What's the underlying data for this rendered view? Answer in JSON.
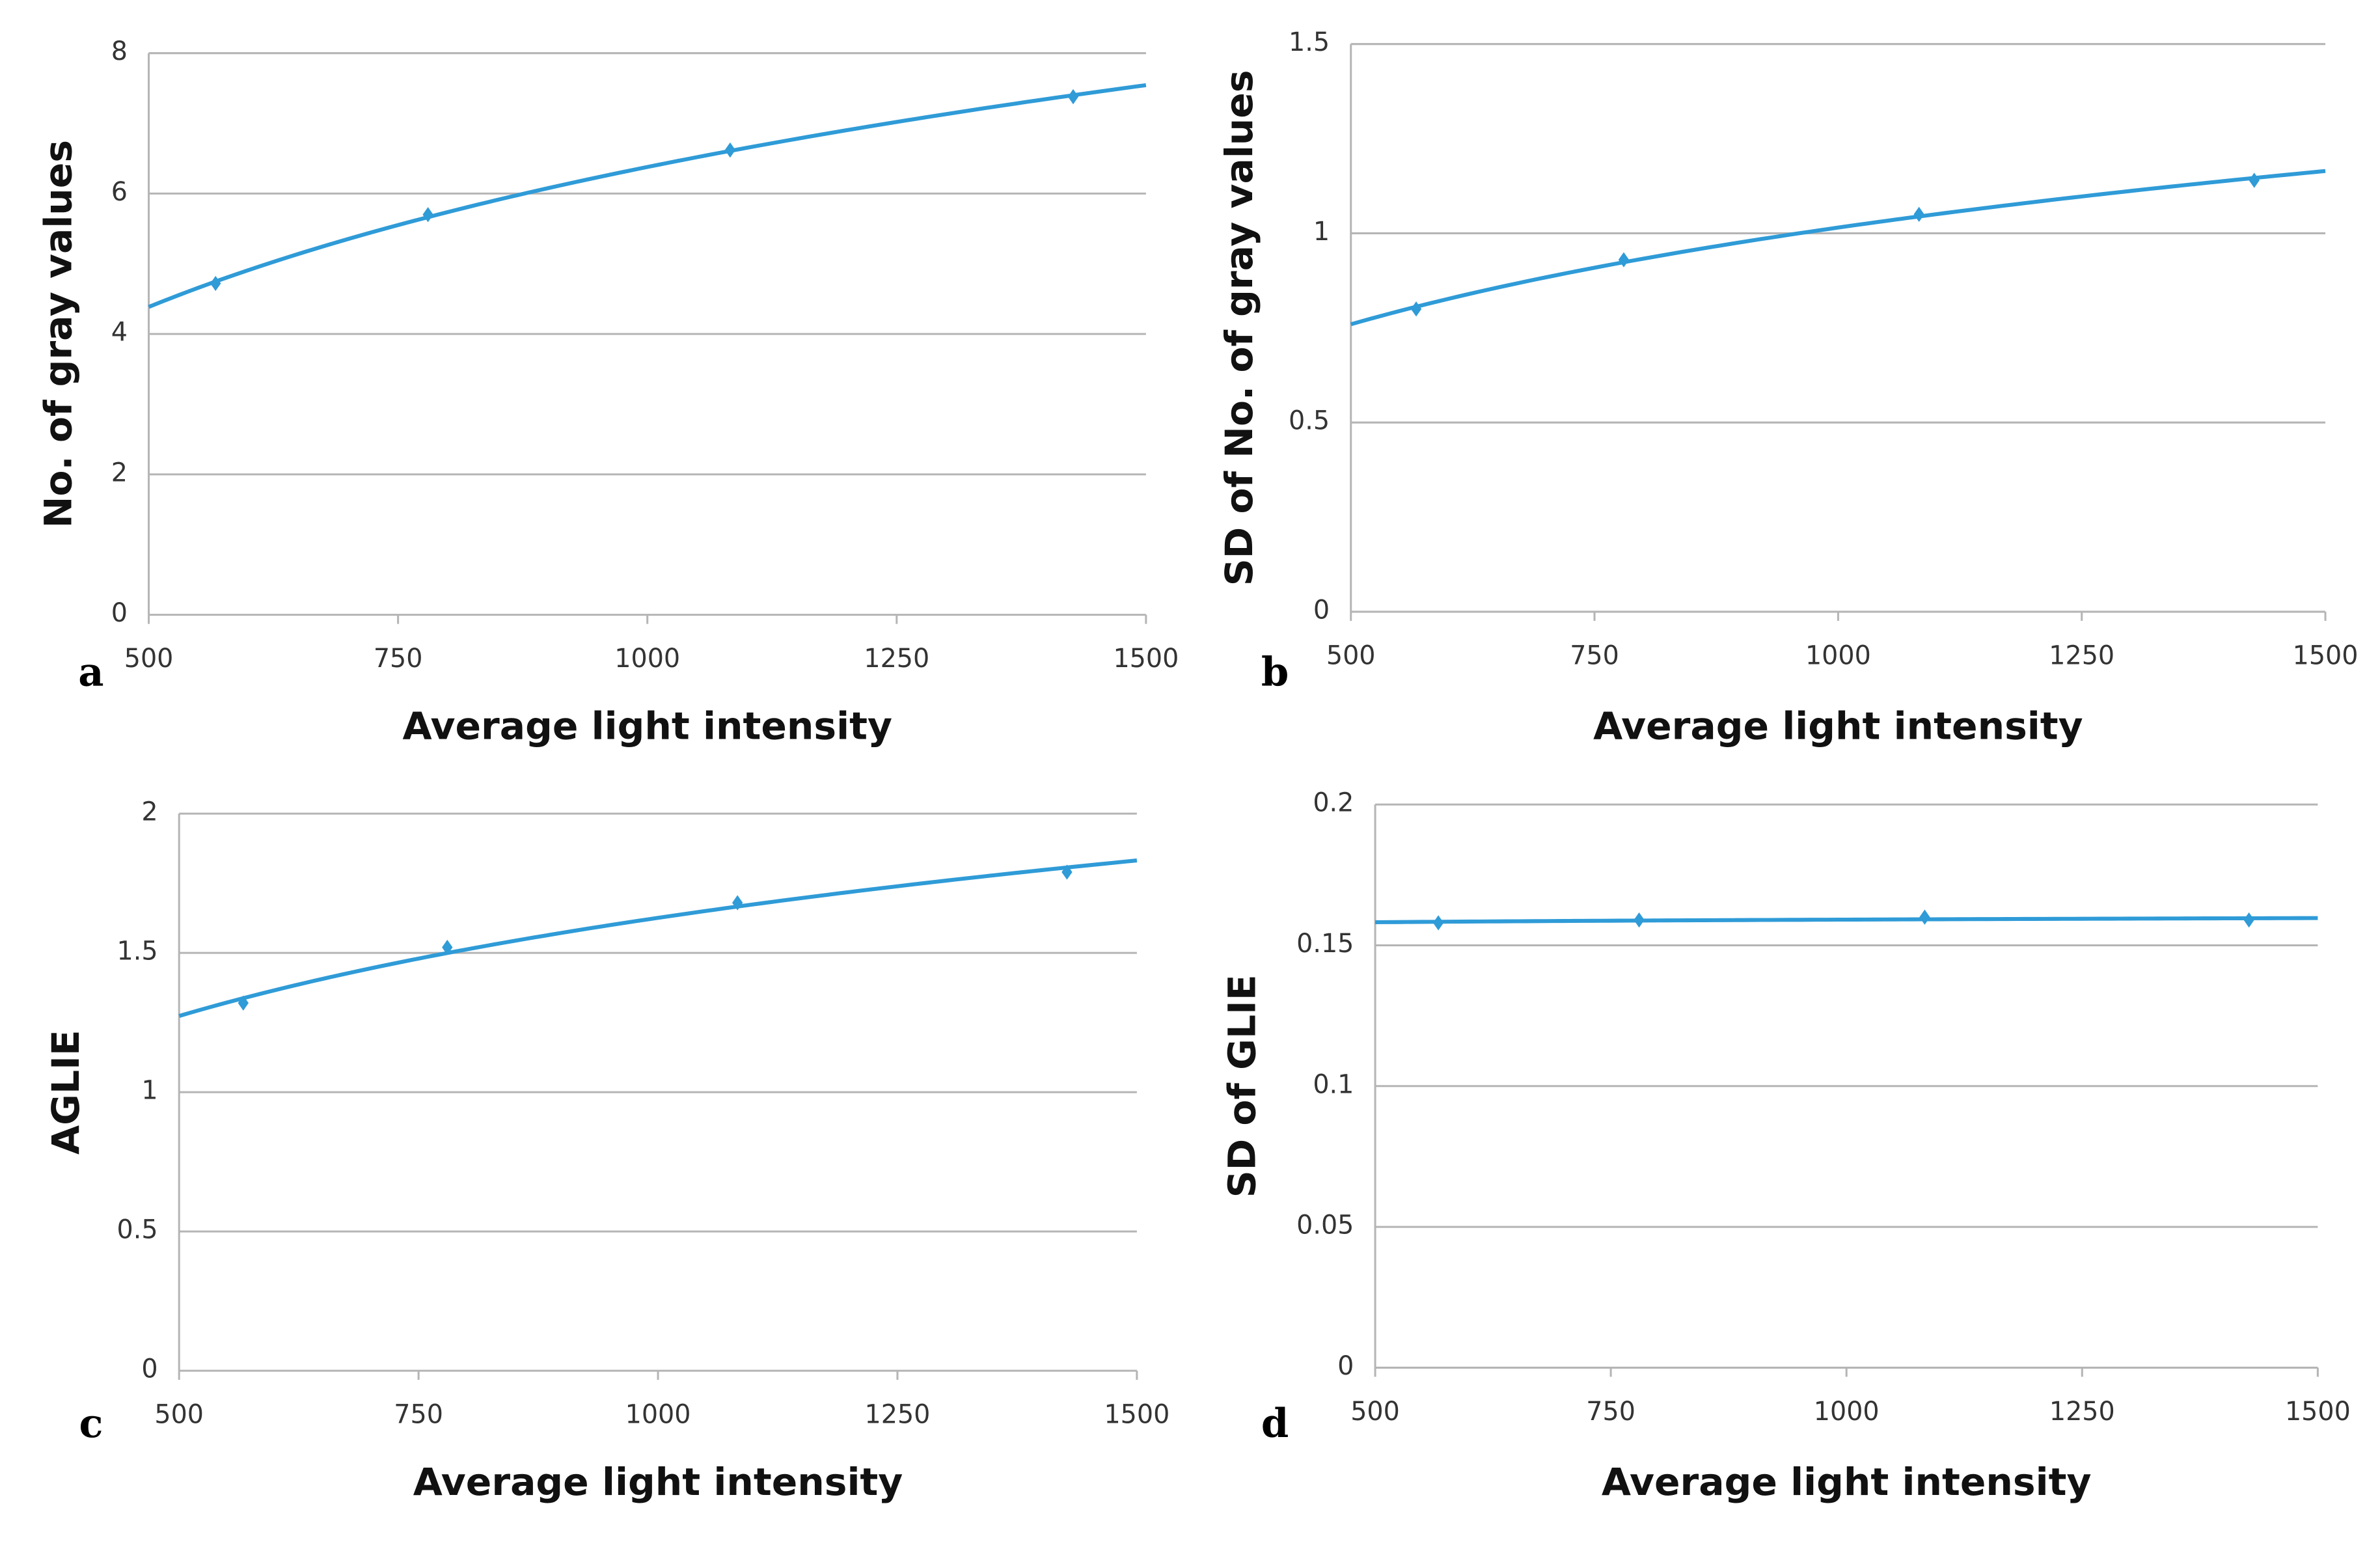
{
  "chart_data": [
    {
      "type": "line",
      "trendline": "logarithmic",
      "panel_label": "a",
      "x_label": "Average light intensity",
      "y_label": "No. of gray values",
      "x": [
        567,
        780,
        1083,
        1427
      ],
      "series": [
        {
          "color": "#2f9bd7",
          "values": [
            4.72,
            5.7,
            6.62,
            7.38
          ]
        }
      ],
      "xlim": [
        500,
        1500
      ],
      "xticks": [
        500,
        750,
        1000,
        1250,
        1500
      ],
      "ylim": [
        0,
        8
      ],
      "yticks": [
        0,
        2,
        4,
        6,
        8
      ],
      "grid": true
    },
    {
      "type": "line",
      "trendline": "logarithmic",
      "panel_label": "b",
      "x_label": "Average light intensity",
      "y_label": "SD of No. of gray values",
      "x": [
        567,
        780,
        1083,
        1427
      ],
      "series": [
        {
          "color": "#2f9bd7",
          "values": [
            0.8,
            0.93,
            1.05,
            1.14
          ]
        }
      ],
      "xlim": [
        500,
        1500
      ],
      "xticks": [
        500,
        750,
        1000,
        1250,
        1500
      ],
      "ylim": [
        0,
        1.5
      ],
      "yticks": [
        0,
        0.5,
        1,
        1.5
      ],
      "grid": true
    },
    {
      "type": "line",
      "trendline": "logarithmic",
      "panel_label": "c",
      "x_label": "Average light intensity",
      "y_label": "AGLIE",
      "x": [
        567,
        780,
        1083,
        1427
      ],
      "series": [
        {
          "color": "#2f9bd7",
          "values": [
            1.32,
            1.52,
            1.68,
            1.79
          ]
        }
      ],
      "xlim": [
        500,
        1500
      ],
      "xticks": [
        500,
        750,
        1000,
        1250,
        1500
      ],
      "ylim": [
        0,
        2
      ],
      "yticks": [
        0,
        0.5,
        1,
        1.5,
        2
      ],
      "grid": true
    },
    {
      "type": "line",
      "trendline": "logarithmic",
      "panel_label": "d",
      "x_label": "Average light intensity",
      "y_label": "SD of GLIE",
      "x": [
        567,
        780,
        1083,
        1427
      ],
      "series": [
        {
          "color": "#2f9bd7",
          "values": [
            0.158,
            0.159,
            0.16,
            0.159
          ]
        }
      ],
      "xlim": [
        500,
        1500
      ],
      "xticks": [
        500,
        750,
        1000,
        1250,
        1500
      ],
      "ylim": [
        0,
        0.2
      ],
      "yticks": [
        0,
        0.05,
        0.1,
        0.15,
        0.2
      ],
      "grid": true
    }
  ]
}
